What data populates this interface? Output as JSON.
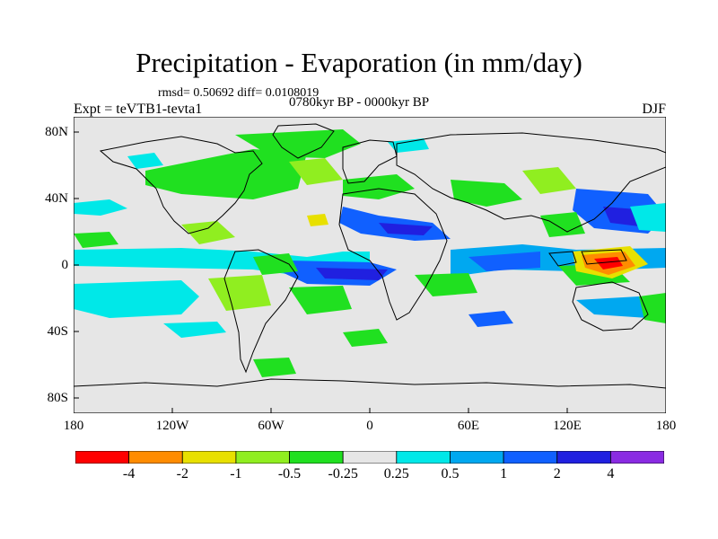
{
  "title": "Precipitation - Evaporation (in mm/day)",
  "stats": "rmsd= 0.50692  diff= 0.0108019",
  "period": "0780kyr BP - 0000kyr BP",
  "experiment": "Expt = teVTB1-tevta1",
  "season": "DJF",
  "lat_ticks": [
    "80N",
    "40N",
    "0",
    "40S",
    "80S"
  ],
  "lon_ticks": [
    "180",
    "120W",
    "60W",
    "0",
    "60E",
    "120E",
    "180"
  ],
  "colorbar": {
    "labels": [
      "-4",
      "-2",
      "-1",
      "-0.5",
      "-0.25",
      "0.25",
      "0.5",
      "1",
      "2",
      "4"
    ],
    "colors": [
      "#ff0000",
      "#ff8c00",
      "#e8e000",
      "#90ee20",
      "#20e020",
      "#e6e6e6",
      "#00e8e8",
      "#00a8f0",
      "#1060ff",
      "#2020e0",
      "#8a2be2"
    ]
  },
  "palette": {
    "background": "#e6e6e6",
    "wet_light": "#00e8e8",
    "wet_mid": "#00a8f0",
    "wet_strong": "#1060ff",
    "wet_max": "#2020e0",
    "dry_light": "#20e020",
    "dry_mid": "#90ee20",
    "dry_strong": "#e8e000",
    "dry_max": "#ff8c00",
    "dry_extreme": "#ff0000",
    "coast": "#000000"
  }
}
